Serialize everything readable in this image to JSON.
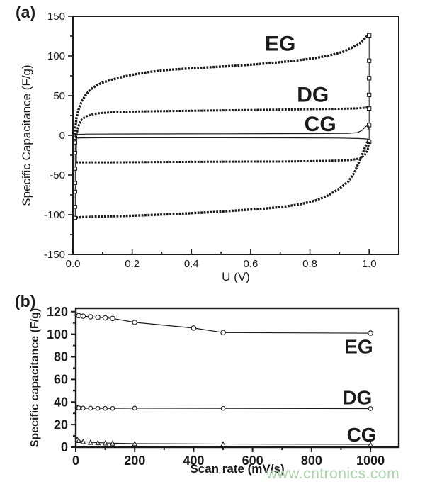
{
  "palette": {
    "ink": "#1b1b1b",
    "background": "#ffffff"
  },
  "watermark": {
    "text": "www.cntronics.com",
    "color": "#a9d4a9"
  },
  "chart_data": [
    {
      "id": "a",
      "type": "line",
      "panel_label": "(a)",
      "title": "",
      "xlabel": "U (V)",
      "ylabel": "Specific Capacitance (F/g)",
      "xlim": [
        0,
        1.1
      ],
      "ylim": [
        -150,
        150
      ],
      "grid": false,
      "legend_position": "inline",
      "x_ticks": {
        "values": [
          0,
          0.2,
          0.4,
          0.6,
          0.8,
          1.0
        ],
        "labels": [
          "0.0",
          "0.2",
          "0.4",
          "0.6",
          "0.8",
          "1.0"
        ],
        "minor": [
          0.1,
          0.3,
          0.5,
          0.7,
          0.9
        ]
      },
      "y_ticks": {
        "values": [
          150,
          100,
          50,
          0,
          -50,
          -100,
          -150
        ],
        "labels": [
          "150",
          "100",
          "50",
          "0",
          "-50",
          "-100",
          "-150"
        ],
        "minor": [
          125,
          75,
          25,
          -25,
          -75,
          -125
        ]
      },
      "annotations": [
        {
          "text": "EG",
          "x": 0.7,
          "y": 115
        },
        {
          "text": "DG",
          "x": 0.81,
          "y": 51
        },
        {
          "text": "CG",
          "x": 0.835,
          "y": 14
        }
      ],
      "series": [
        {
          "name": "EG charge branch",
          "lw": 3.4,
          "dash": "2.8 1.6",
          "x": [
            0.005,
            0.008,
            0.012,
            0.02,
            0.03,
            0.045,
            0.06,
            0.08,
            0.1,
            0.13,
            0.17,
            0.21,
            0.26,
            0.32,
            0.38,
            0.45,
            0.52,
            0.6,
            0.68,
            0.75,
            0.82,
            0.87,
            0.91,
            0.94,
            0.965,
            0.98,
            0.995
          ],
          "y": [
            -3,
            8,
            22,
            34,
            43,
            52,
            58,
            63,
            66.5,
            70,
            74,
            77,
            80,
            82.5,
            84,
            85.5,
            87,
            89,
            91.5,
            94,
            97.5,
            101,
            105,
            110,
            115,
            120,
            126
          ]
        },
        {
          "name": "EG reversal at 1.0 V",
          "lw": 1,
          "marker": "square",
          "ms": 2.6,
          "x": [
            1.0,
            1.0,
            1.0,
            1.0,
            1.0,
            1.0,
            1.0
          ],
          "y": [
            126,
            94,
            72,
            51,
            34,
            13,
            -8
          ]
        },
        {
          "name": "EG discharge branch",
          "lw": 3.4,
          "dash": "2.8 1.6",
          "x": [
            0.995,
            0.985,
            0.975,
            0.963,
            0.95,
            0.93,
            0.9,
            0.86,
            0.82,
            0.77,
            0.71,
            0.64,
            0.56,
            0.48,
            0.4,
            0.32,
            0.25,
            0.18,
            0.12,
            0.07,
            0.035,
            0.015,
            0.008
          ],
          "y": [
            -8,
            -16,
            -26,
            -36,
            -47,
            -58,
            -67,
            -76,
            -82,
            -86.5,
            -90,
            -92.5,
            -94.5,
            -96.5,
            -98,
            -99.5,
            -100.5,
            -101.5,
            -102,
            -102.5,
            -103,
            -103.5,
            -104
          ]
        },
        {
          "name": "EG reversal at 0 V",
          "lw": 1,
          "marker": "square",
          "ms": 2.2,
          "x": [
            0.008,
            0.008,
            0.008,
            0.008,
            0.008,
            0.008,
            0.008,
            0.008
          ],
          "y": [
            -104,
            -90,
            -71,
            -60,
            -42,
            -22,
            -9,
            -3
          ]
        },
        {
          "name": "DG charge branch",
          "lw": 3,
          "dash": "2.8 1.6",
          "x": [
            0.012,
            0.016,
            0.022,
            0.03,
            0.045,
            0.065,
            0.09,
            0.13,
            0.2,
            0.3,
            0.4,
            0.5,
            0.6,
            0.7,
            0.8,
            0.9,
            0.96,
            0.99,
            1.0
          ],
          "y": [
            0,
            8,
            15,
            20,
            24,
            26.5,
            28,
            29,
            30,
            30.5,
            31,
            31.5,
            32,
            32.5,
            33,
            33.5,
            34,
            35,
            36
          ]
        },
        {
          "name": "DG discharge branch",
          "lw": 3,
          "dash": "2.8 1.6",
          "x": [
            1.0,
            0.995,
            0.985,
            0.97,
            0.94,
            0.88,
            0.8,
            0.7,
            0.6,
            0.5,
            0.4,
            0.3,
            0.2,
            0.12,
            0.06,
            0.03,
            0.015,
            0.012
          ],
          "y": [
            -8,
            -18,
            -25,
            -29,
            -31,
            -32,
            -32.5,
            -33,
            -33,
            -33.2,
            -33.4,
            -33.6,
            -33.8,
            -34,
            -34,
            -34,
            -34,
            -33.5
          ]
        },
        {
          "name": "DG reversal at 0 V",
          "lw": 1,
          "x": [
            0.012,
            0.012
          ],
          "y": [
            -33.5,
            0
          ]
        },
        {
          "name": "CG charge branch",
          "lw": 1.2,
          "x": [
            0.008,
            0.05,
            0.2,
            0.5,
            0.8,
            0.93,
            0.96,
            0.975,
            0.988,
            0.997,
            1.0
          ],
          "y": [
            1.2,
            1.6,
            1.8,
            2.0,
            2.2,
            2.6,
            3.5,
            6,
            11,
            12.5,
            6
          ]
        },
        {
          "name": "CG discharge branch",
          "lw": 1.2,
          "x": [
            1.0,
            0.99,
            0.97,
            0.9,
            0.7,
            0.5,
            0.3,
            0.1,
            0.03,
            0.008
          ],
          "y": [
            -5,
            -4.5,
            -4,
            -3.4,
            -3.1,
            -3,
            -3,
            -3,
            -3.2,
            -3.5
          ]
        },
        {
          "name": "CG reversal at 0 V",
          "lw": 0.9,
          "x": [
            0.008,
            0.008
          ],
          "y": [
            -3.5,
            1.2
          ]
        }
      ]
    },
    {
      "id": "b",
      "type": "line",
      "panel_label": "(b)",
      "title": "",
      "xlabel": "Scan rate (mV/s)",
      "ylabel": "Specific capacitance (F/g)",
      "xlim": [
        0,
        1096
      ],
      "ylim": [
        0,
        123
      ],
      "grid": false,
      "legend_position": "inline",
      "x_ticks": {
        "values": [
          0,
          200,
          400,
          600,
          800,
          1000
        ],
        "labels": [
          "0",
          "200",
          "400",
          "600",
          "800",
          "1000"
        ],
        "minor": [
          100,
          300,
          500,
          700,
          900
        ]
      },
      "y_ticks": {
        "values": [
          120,
          100,
          80,
          60,
          40,
          20,
          0
        ],
        "labels": [
          "120",
          "100",
          "80",
          "60",
          "40",
          "20",
          "0"
        ],
        "minor": [
          110,
          90,
          70,
          50,
          30,
          10
        ]
      },
      "annotations": [
        {
          "text": "EG",
          "x": 960,
          "y": 89
        },
        {
          "text": "DG",
          "x": 955,
          "y": 44
        },
        {
          "text": "CG",
          "x": 970,
          "y": 11
        }
      ],
      "series": [
        {
          "name": "EG",
          "lw": 1.2,
          "marker": "circle",
          "ms": 3.2,
          "x": [
            5,
            10,
            25,
            50,
            75,
            100,
            125,
            200,
            400,
            500,
            1000
          ],
          "y": [
            117,
            116.5,
            116,
            115.5,
            115,
            114.5,
            114,
            110.5,
            105.5,
            101.5,
            101
          ]
        },
        {
          "name": "DG",
          "lw": 1.2,
          "marker": "circle",
          "ms": 2.8,
          "x": [
            5,
            10,
            25,
            50,
            75,
            100,
            125,
            200,
            500,
            1000
          ],
          "y": [
            35,
            34.8,
            34.6,
            34.5,
            34.4,
            34.4,
            34.4,
            34.6,
            34.4,
            34.2
          ]
        },
        {
          "name": "CG",
          "lw": 1.1,
          "marker": "triangle",
          "ms": 3,
          "x": [
            5,
            10,
            25,
            50,
            75,
            100,
            125,
            200,
            500,
            1000
          ],
          "y": [
            7,
            6,
            5,
            4.3,
            4,
            3.8,
            3.6,
            3.2,
            2.8,
            2.5
          ]
        }
      ]
    }
  ]
}
